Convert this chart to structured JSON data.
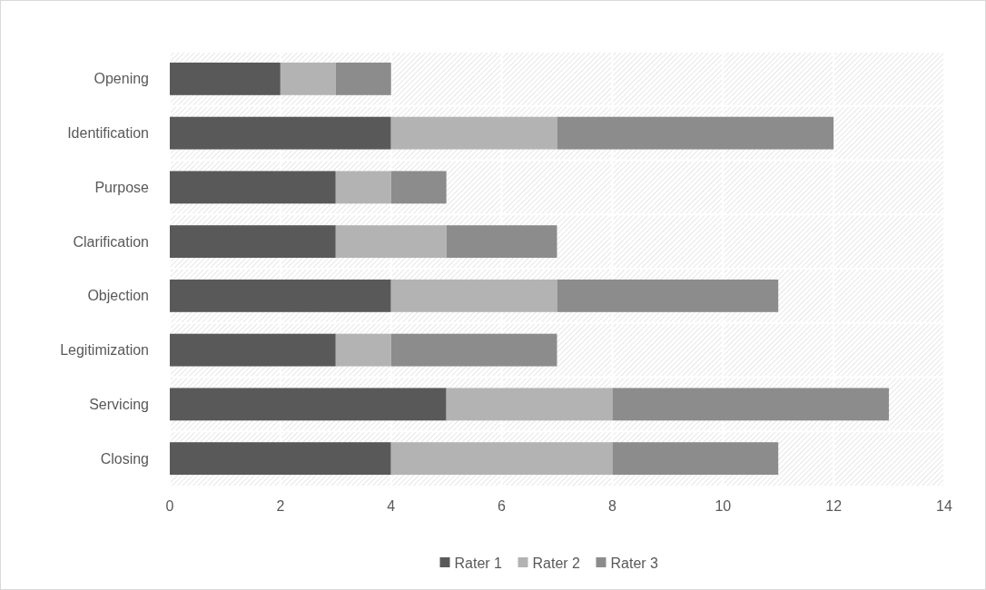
{
  "chart_data": {
    "type": "bar",
    "orientation": "horizontal",
    "stacked": true,
    "categories": [
      "Opening",
      "Identification",
      "Purpose",
      "Clarification",
      "Objection",
      "Legitimization",
      "Servicing",
      "Closing"
    ],
    "series": [
      {
        "name": "Rater 1",
        "color": "#595959",
        "values": [
          2,
          4,
          3,
          3,
          4,
          3,
          5,
          4
        ]
      },
      {
        "name": "Rater 2",
        "color": "#b3b3b3",
        "values": [
          1,
          3,
          1,
          2,
          3,
          1,
          3,
          4
        ]
      },
      {
        "name": "Rater 3",
        "color": "#8c8c8c",
        "values": [
          1,
          5,
          1,
          2,
          4,
          3,
          5,
          3
        ]
      }
    ],
    "xlim": [
      0,
      14
    ],
    "xticks": [
      0,
      2,
      4,
      6,
      8,
      10,
      12,
      14
    ],
    "grid": "x",
    "legend": "bottom"
  }
}
